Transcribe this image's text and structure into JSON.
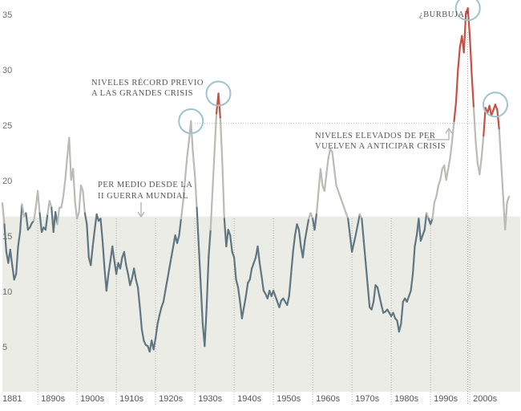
{
  "chart_data": {
    "type": "line",
    "title": "",
    "xlabel": "",
    "ylabel": "",
    "xlim": [
      1881,
      2010
    ],
    "ylim": [
      0,
      36
    ],
    "y_ticks": [
      {
        "value": 35,
        "label": "35"
      },
      {
        "value": 30,
        "label": "30"
      },
      {
        "value": 25,
        "label": "25"
      },
      {
        "value": 20,
        "label": "20"
      },
      {
        "value": 15,
        "label": "15"
      },
      {
        "value": 10,
        "label": "10"
      },
      {
        "value": 5,
        "label": "5"
      }
    ],
    "x_ticks": [
      {
        "value": 1881,
        "label": "1881"
      },
      {
        "value": 1890,
        "label": "1890s"
      },
      {
        "value": 1900,
        "label": "1900s"
      },
      {
        "value": 1910,
        "label": "1910s"
      },
      {
        "value": 1920,
        "label": "1920s"
      },
      {
        "value": 1930,
        "label": "1930s"
      },
      {
        "value": 1940,
        "label": "1940s"
      },
      {
        "value": 1950,
        "label": "1950s"
      },
      {
        "value": 1960,
        "label": "1960s"
      },
      {
        "value": 1970,
        "label": "1970s"
      },
      {
        "value": 1980,
        "label": "1980s"
      },
      {
        "value": 1990,
        "label": "1990s"
      },
      {
        "value": 2000,
        "label": "2000s"
      }
    ],
    "average_level": 17.2,
    "record_level": 25.6,
    "grid": false,
    "colors": {
      "above_average": "#b9bbb4",
      "below_average": "#5f7581",
      "record": "#c94f42",
      "band": "#ebece6",
      "circle": "#9fc3cd",
      "text": "#555555"
    },
    "series": [
      {
        "points": [
          [
            1881,
            18.4
          ],
          [
            1881.5,
            16.5
          ],
          [
            1882,
            14.0
          ],
          [
            1882.5,
            13.0
          ],
          [
            1883,
            14.2
          ],
          [
            1883.5,
            12.8
          ],
          [
            1884,
            11.5
          ],
          [
            1884.5,
            12.0
          ],
          [
            1885,
            14.5
          ],
          [
            1885.5,
            15.8
          ],
          [
            1886,
            18.3
          ],
          [
            1886.5,
            17.2
          ],
          [
            1887,
            17.5
          ],
          [
            1887.5,
            16.0
          ],
          [
            1888,
            16.2
          ],
          [
            1888.5,
            16.6
          ],
          [
            1889,
            16.8
          ],
          [
            1889.5,
            18.0
          ],
          [
            1890,
            19.5
          ],
          [
            1890.5,
            17.5
          ],
          [
            1891,
            15.8
          ],
          [
            1891.5,
            16.2
          ],
          [
            1892,
            16.0
          ],
          [
            1892.5,
            17.4
          ],
          [
            1893,
            18.6
          ],
          [
            1893.5,
            18.0
          ],
          [
            1894,
            15.8
          ],
          [
            1894.5,
            17.6
          ],
          [
            1895,
            16.5
          ],
          [
            1895.5,
            18.0
          ],
          [
            1896,
            18.0
          ],
          [
            1896.5,
            19.0
          ],
          [
            1897,
            20.5
          ],
          [
            1897.5,
            22.5
          ],
          [
            1898,
            24.3
          ],
          [
            1898.5,
            20.5
          ],
          [
            1899,
            21.5
          ],
          [
            1899.5,
            18.5
          ],
          [
            1900,
            17.0
          ],
          [
            1900.5,
            17.6
          ],
          [
            1901,
            20.0
          ],
          [
            1901.5,
            19.5
          ],
          [
            1902,
            17.5
          ],
          [
            1902.5,
            16.5
          ],
          [
            1903,
            13.5
          ],
          [
            1903.5,
            12.8
          ],
          [
            1904,
            14.5
          ],
          [
            1904.5,
            16.0
          ],
          [
            1905,
            17.4
          ],
          [
            1905.5,
            16.8
          ],
          [
            1906,
            17.0
          ],
          [
            1906.5,
            15.0
          ],
          [
            1907,
            12.5
          ],
          [
            1907.5,
            10.5
          ],
          [
            1908,
            12.0
          ],
          [
            1908.5,
            13.2
          ],
          [
            1909,
            14.5
          ],
          [
            1909.5,
            13.2
          ],
          [
            1910,
            12.0
          ],
          [
            1910.5,
            13.0
          ],
          [
            1911,
            12.5
          ],
          [
            1911.5,
            13.5
          ],
          [
            1912,
            14.0
          ],
          [
            1912.5,
            12.8
          ],
          [
            1913,
            12.0
          ],
          [
            1913.5,
            11.0
          ],
          [
            1914,
            11.6
          ],
          [
            1914.5,
            12.5
          ],
          [
            1915,
            11.5
          ],
          [
            1915.5,
            10.8
          ],
          [
            1916,
            9.0
          ],
          [
            1916.5,
            7.0
          ],
          [
            1917,
            6.0
          ],
          [
            1917.5,
            5.6
          ],
          [
            1918,
            5.5
          ],
          [
            1918.5,
            5.0
          ],
          [
            1919,
            6.0
          ],
          [
            1919.5,
            5.2
          ],
          [
            1920,
            6.2
          ],
          [
            1920.5,
            7.5
          ],
          [
            1921,
            8.3
          ],
          [
            1921.5,
            9.0
          ],
          [
            1922,
            9.5
          ],
          [
            1922.5,
            10.5
          ],
          [
            1923,
            11.5
          ],
          [
            1923.5,
            12.5
          ],
          [
            1924,
            13.5
          ],
          [
            1924.5,
            14.5
          ],
          [
            1925,
            15.5
          ],
          [
            1925.5,
            14.8
          ],
          [
            1926,
            15.5
          ],
          [
            1926.5,
            17.0
          ],
          [
            1927,
            18.5
          ],
          [
            1927.5,
            20.5
          ],
          [
            1928,
            22.5
          ],
          [
            1928.5,
            24.0
          ],
          [
            1929,
            25.8
          ],
          [
            1929.5,
            23.0
          ],
          [
            1930,
            21.0
          ],
          [
            1930.5,
            18.0
          ],
          [
            1931,
            14.5
          ],
          [
            1931.5,
            11.0
          ],
          [
            1932,
            7.5
          ],
          [
            1932.5,
            5.5
          ],
          [
            1933,
            9.0
          ],
          [
            1933.5,
            13.5
          ],
          [
            1934,
            16.0
          ],
          [
            1934.5,
            19.5
          ],
          [
            1935,
            23.0
          ],
          [
            1935.5,
            26.5
          ],
          [
            1936,
            28.3
          ],
          [
            1936.5,
            26.0
          ],
          [
            1937,
            22.0
          ],
          [
            1937.5,
            17.0
          ],
          [
            1938,
            14.5
          ],
          [
            1938.5,
            16.0
          ],
          [
            1939,
            15.5
          ],
          [
            1939.5,
            14.0
          ],
          [
            1940,
            13.5
          ],
          [
            1940.5,
            11.5
          ],
          [
            1941,
            10.8
          ],
          [
            1941.5,
            9.5
          ],
          [
            1942,
            8.0
          ],
          [
            1942.5,
            9.0
          ],
          [
            1943,
            10.0
          ],
          [
            1943.5,
            11.2
          ],
          [
            1944,
            11.5
          ],
          [
            1944.5,
            12.5
          ],
          [
            1945,
            13.0
          ],
          [
            1945.5,
            13.5
          ],
          [
            1946,
            14.5
          ],
          [
            1946.5,
            13.0
          ],
          [
            1947,
            11.8
          ],
          [
            1947.5,
            10.5
          ],
          [
            1948,
            10.2
          ],
          [
            1948.5,
            9.8
          ],
          [
            1949,
            10.5
          ],
          [
            1949.5,
            10.0
          ],
          [
            1950,
            10.5
          ],
          [
            1950.5,
            10.0
          ],
          [
            1951,
            9.5
          ],
          [
            1951.5,
            9.0
          ],
          [
            1952,
            9.6
          ],
          [
            1952.5,
            9.8
          ],
          [
            1953,
            9.5
          ],
          [
            1953.5,
            9.2
          ],
          [
            1954,
            10.0
          ],
          [
            1954.5,
            12.0
          ],
          [
            1955,
            14.0
          ],
          [
            1955.5,
            15.5
          ],
          [
            1956,
            16.5
          ],
          [
            1956.5,
            16.0
          ],
          [
            1957,
            14.5
          ],
          [
            1957.5,
            13.5
          ],
          [
            1958,
            15.0
          ],
          [
            1958.5,
            16.0
          ],
          [
            1959,
            17.0
          ],
          [
            1959.5,
            17.5
          ],
          [
            1960,
            17.0
          ],
          [
            1960.5,
            16.0
          ],
          [
            1961,
            17.5
          ],
          [
            1961.5,
            19.5
          ],
          [
            1962,
            21.5
          ],
          [
            1962.5,
            20.0
          ],
          [
            1963,
            19.5
          ],
          [
            1963.5,
            21.0
          ],
          [
            1964,
            22.5
          ],
          [
            1964.5,
            23.3
          ],
          [
            1965,
            23.0
          ],
          [
            1965.5,
            21.5
          ],
          [
            1966,
            20.0
          ],
          [
            1966.5,
            19.5
          ],
          [
            1967,
            19.0
          ],
          [
            1967.5,
            18.5
          ],
          [
            1968,
            18.0
          ],
          [
            1968.5,
            17.5
          ],
          [
            1969,
            17.0
          ],
          [
            1969.5,
            15.5
          ],
          [
            1970,
            14.0
          ],
          [
            1970.5,
            14.8
          ],
          [
            1971,
            15.6
          ],
          [
            1971.5,
            16.5
          ],
          [
            1972,
            17.4
          ],
          [
            1972.5,
            17.0
          ],
          [
            1973,
            15.0
          ],
          [
            1973.5,
            13.0
          ],
          [
            1974,
            11.0
          ],
          [
            1974.5,
            9.0
          ],
          [
            1975,
            8.8
          ],
          [
            1975.5,
            9.5
          ],
          [
            1976,
            11.0
          ],
          [
            1976.5,
            10.8
          ],
          [
            1977,
            10.0
          ],
          [
            1977.5,
            9.2
          ],
          [
            1978,
            8.5
          ],
          [
            1978.5,
            8.6
          ],
          [
            1979,
            8.8
          ],
          [
            1979.5,
            8.5
          ],
          [
            1980,
            8.2
          ],
          [
            1980.5,
            8.5
          ],
          [
            1981,
            8.0
          ],
          [
            1981.5,
            7.8
          ],
          [
            1982,
            6.8
          ],
          [
            1982.5,
            7.5
          ],
          [
            1983,
            9.5
          ],
          [
            1983.5,
            9.8
          ],
          [
            1984,
            9.5
          ],
          [
            1984.5,
            10.0
          ],
          [
            1985,
            10.5
          ],
          [
            1985.5,
            12.0
          ],
          [
            1986,
            14.5
          ],
          [
            1986.5,
            15.5
          ],
          [
            1987,
            17.0
          ],
          [
            1987.5,
            15.0
          ],
          [
            1988,
            15.5
          ],
          [
            1988.5,
            16.0
          ],
          [
            1989,
            17.5
          ],
          [
            1989.5,
            17.0
          ],
          [
            1990,
            16.5
          ],
          [
            1990.5,
            17.0
          ],
          [
            1991,
            18.5
          ],
          [
            1991.5,
            19.0
          ],
          [
            1992,
            20.0
          ],
          [
            1992.5,
            20.5
          ],
          [
            1993,
            21.5
          ],
          [
            1993.5,
            21.8
          ],
          [
            1994,
            20.5
          ],
          [
            1994.5,
            21.5
          ],
          [
            1995,
            22.5
          ],
          [
            1995.5,
            24.0
          ],
          [
            1996,
            25.8
          ],
          [
            1996.5,
            27.5
          ],
          [
            1997,
            30.5
          ],
          [
            1997.5,
            32.5
          ],
          [
            1998,
            33.5
          ],
          [
            1998.5,
            32.0
          ],
          [
            1999,
            35.5
          ],
          [
            1999.5,
            36.0
          ],
          [
            2000,
            33.5
          ],
          [
            2000.5,
            30.0
          ],
          [
            2001,
            27.0
          ],
          [
            2001.5,
            24.0
          ],
          [
            2002,
            22.0
          ],
          [
            2002.5,
            21.0
          ],
          [
            2003,
            22.5
          ],
          [
            2003.5,
            24.5
          ],
          [
            2004,
            27.0
          ],
          [
            2004.5,
            26.5
          ],
          [
            2005,
            27.2
          ],
          [
            2005.5,
            26.3
          ],
          [
            2006,
            26.8
          ],
          [
            2006.5,
            27.3
          ],
          [
            2007,
            26.8
          ],
          [
            2007.5,
            25.0
          ],
          [
            2008,
            22.0
          ],
          [
            2008.5,
            19.0
          ],
          [
            2009,
            16.0
          ],
          [
            2009.5,
            18.5
          ],
          [
            2010,
            19.0
          ]
        ]
      }
    ],
    "annotations": [
      {
        "lines": [
          "PER MEDIO DESDE LA",
          "II GUERRA MUNDIAL"
        ]
      },
      {
        "lines": [
          "NIVELES RÉCORD PREVIO",
          "A LAS GRANDES CRISIS"
        ]
      },
      {
        "lines": [
          "NIVELES ELEVADOS DE PER",
          "VUELVEN A ANTICIPAR CRISIS"
        ]
      },
      {
        "lines": [
          "¿BURBUJA?"
        ]
      }
    ]
  }
}
